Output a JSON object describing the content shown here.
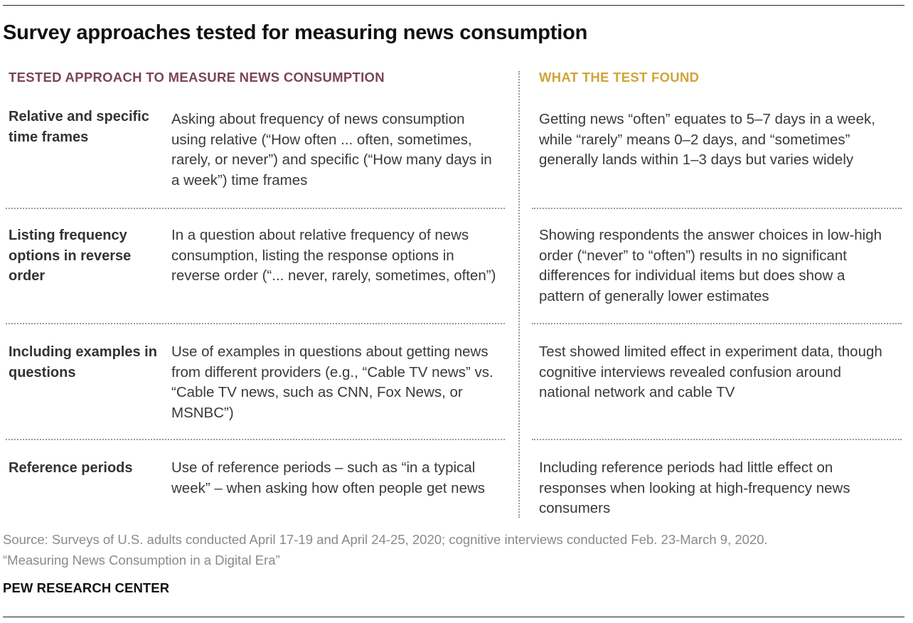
{
  "title": "Survey approaches tested for measuring news consumption",
  "columns": {
    "left_header": "TESTED APPROACH TO MEASURE NEWS CONSUMPTION",
    "right_header": "WHAT THE TEST FOUND",
    "left_header_color": "#7a4653",
    "right_header_color": "#d1a438"
  },
  "rows": [
    {
      "label": "Relative and specific time frames",
      "approach": "Asking about frequency of news consumption using relative (“How often ... often, sometimes, rarely, or never”) and specific (“How many days in a week”) time frames",
      "finding": "Getting news “often” equates to 5–7 days in a week, while “rarely” means 0–2 days, and “sometimes” generally lands within 1–3 days but varies widely"
    },
    {
      "label": "Listing frequency options in reverse order",
      "approach": "In a question about relative frequency of news consumption, listing the response options in reverse order (“... never, rarely, sometimes, often”)",
      "finding": "Showing respondents the answer choices in low-high order (“never” to “often”) results in no significant differences for individual items but does show a pattern of generally lower estimates"
    },
    {
      "label": "Including examples in questions",
      "approach": "Use of examples in questions about getting news from different providers (e.g., “Cable TV news” vs. “Cable TV news, such as CNN, Fox News, or MSNBC”)",
      "finding": "Test showed limited effect in experiment data, though cognitive interviews revealed confusion around national network and cable TV"
    },
    {
      "label": "Reference periods",
      "approach": "Use of reference periods – such as “in a typical week” – when asking how often people get news",
      "finding": "Including reference periods had little effect on responses when looking at high-frequency news consumers"
    }
  ],
  "source": {
    "line1": "Source: Surveys of U.S. adults conducted April 17-19 and April 24-25, 2020; cognitive interviews conducted Feb. 23-March 9, 2020.",
    "line2": "“Measuring News Consumption in a Digital Era”"
  },
  "brand": "PEW RESEARCH CENTER"
}
